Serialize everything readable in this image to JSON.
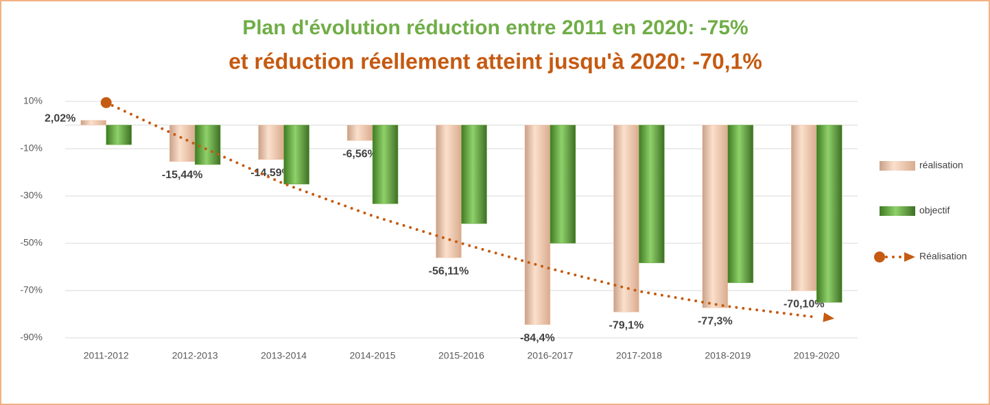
{
  "chart_data": {
    "type": "bar",
    "title": "Plan d'évolution réduction entre 2011 en 2020: -75%",
    "subtitle": "et réduction réellement atteint jusqu'à 2020: -70,1%",
    "title_color": "#70ad47",
    "subtitle_color": "#c55a11",
    "categories": [
      "2011-2012",
      "2012-2013",
      "2013-2014",
      "2014-2015",
      "2015-2016",
      "2016-2017",
      "2017-2018",
      "2018-2019",
      "2019-2020"
    ],
    "series": [
      {
        "name": "réalisation",
        "color": "#f8cbad",
        "values": [
          2.02,
          -15.44,
          -14.59,
          -6.56,
          -56.11,
          -84.4,
          -79.1,
          -77.3,
          -70.1
        ],
        "value_labels": [
          "2,02%",
          "-15,44%",
          "-14,59%",
          "-6,56%",
          "-56,11%",
          "-84,4%",
          "-79,1%",
          "-77,3%",
          "-70,10%"
        ]
      },
      {
        "name": "objectif",
        "color": "#70ad47",
        "values": [
          -8.3,
          -16.7,
          -25,
          -33.3,
          -41.7,
          -50,
          -58.3,
          -66.7,
          -75
        ]
      },
      {
        "name": "Réalisation",
        "type": "line",
        "style": "dotted",
        "color": "#c55a11",
        "values": [
          9.5,
          -8,
          -24.8,
          -38.4,
          -50,
          -60.7,
          -70.3,
          -76.7,
          -81.3
        ]
      }
    ],
    "ylim": [
      -90,
      10
    ],
    "yticks": [
      {
        "value": 10,
        "label": "10%"
      },
      {
        "value": -10,
        "label": "-10%"
      },
      {
        "value": -30,
        "label": "-30%"
      },
      {
        "value": -50,
        "label": "-50%"
      },
      {
        "value": -70,
        "label": "-70%"
      },
      {
        "value": -90,
        "label": "-90%"
      }
    ],
    "grid": true,
    "legend": "right"
  }
}
